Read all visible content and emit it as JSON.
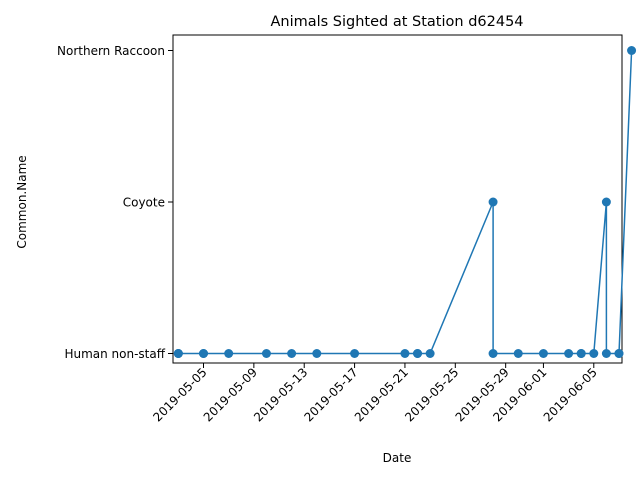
{
  "chart_data": {
    "type": "line",
    "title": "Animals Sighted at Station d62454",
    "xlabel": "Date",
    "ylabel": "Common.Name",
    "categories_y": [
      "Human non-staff",
      "Coyote",
      "Northern Raccoon"
    ],
    "x_ticks": [
      "2019-05-05",
      "2019-05-09",
      "2019-05-13",
      "2019-05-17",
      "2019-05-21",
      "2019-05-25",
      "2019-05-29",
      "2019-06-01",
      "2019-06-05"
    ],
    "xlim": [
      "2019-05-02",
      "2019-06-07"
    ],
    "grid": false,
    "legend": "none",
    "color": "#1f77b4",
    "series": [
      {
        "points": [
          {
            "x": "2019-05-03",
            "y": "Human non-staff"
          },
          {
            "x": "2019-05-03",
            "y": "Human non-staff"
          },
          {
            "x": "2019-05-03",
            "y": "Human non-staff"
          },
          {
            "x": "2019-05-05",
            "y": "Human non-staff"
          },
          {
            "x": "2019-05-05",
            "y": "Human non-staff"
          },
          {
            "x": "2019-05-07",
            "y": "Human non-staff"
          },
          {
            "x": "2019-05-10",
            "y": "Human non-staff"
          },
          {
            "x": "2019-05-12",
            "y": "Human non-staff"
          },
          {
            "x": "2019-05-14",
            "y": "Human non-staff"
          },
          {
            "x": "2019-05-17",
            "y": "Human non-staff"
          },
          {
            "x": "2019-05-21",
            "y": "Human non-staff"
          },
          {
            "x": "2019-05-22",
            "y": "Human non-staff"
          },
          {
            "x": "2019-05-22",
            "y": "Human non-staff"
          },
          {
            "x": "2019-05-23",
            "y": "Human non-staff"
          },
          {
            "x": "2019-05-28",
            "y": "Coyote"
          },
          {
            "x": "2019-05-28",
            "y": "Human non-staff"
          },
          {
            "x": "2019-05-30",
            "y": "Human non-staff"
          },
          {
            "x": "2019-06-01",
            "y": "Human non-staff"
          },
          {
            "x": "2019-06-03",
            "y": "Human non-staff"
          },
          {
            "x": "2019-06-04",
            "y": "Human non-staff"
          },
          {
            "x": "2019-06-04",
            "y": "Human non-staff"
          },
          {
            "x": "2019-06-05",
            "y": "Human non-staff"
          },
          {
            "x": "2019-06-06",
            "y": "Coyote"
          },
          {
            "x": "2019-06-06",
            "y": "Human non-staff"
          },
          {
            "x": "2019-06-07",
            "y": "Human non-staff"
          },
          {
            "x": "2019-06-07",
            "y": "Human non-staff"
          },
          {
            "x": "2019-06-08",
            "y": "Northern Raccoon"
          }
        ]
      }
    ]
  }
}
